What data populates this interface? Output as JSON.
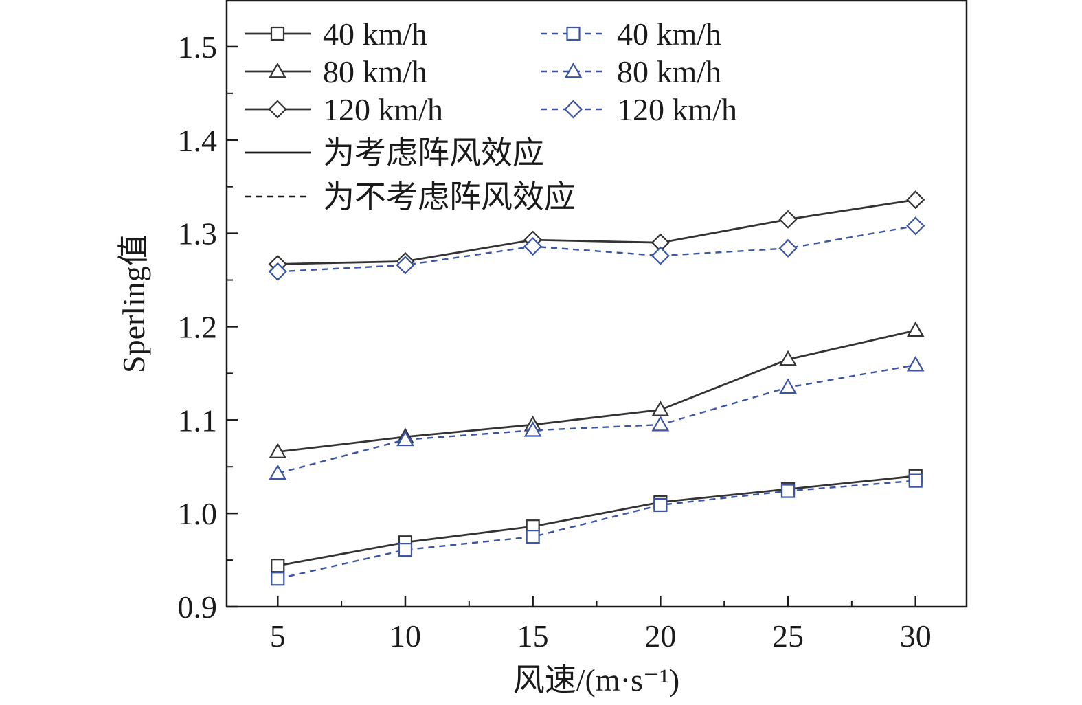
{
  "chart_data": {
    "type": "line",
    "xlabel": "风速/(m·s⁻¹)",
    "ylabel": "Sperling值",
    "x": [
      5,
      10,
      15,
      20,
      25,
      30
    ],
    "xlim": [
      3,
      32
    ],
    "ylim": [
      0.9,
      1.55
    ],
    "x_ticks": [
      "5",
      "10",
      "15",
      "20",
      "25",
      "30"
    ],
    "y_ticks": [
      "0.9",
      "1.0",
      "1.1",
      "1.2",
      "1.3",
      "1.4",
      "1.5"
    ],
    "grid": false,
    "legend_position": "top-left",
    "series": [
      {
        "name": "40 km/h",
        "group": "gust",
        "line": "solid",
        "marker": "square",
        "color": "#333333",
        "values": [
          0.944,
          0.969,
          0.986,
          1.012,
          1.026,
          1.04
        ]
      },
      {
        "name": "80 km/h",
        "group": "gust",
        "line": "solid",
        "marker": "triangle",
        "color": "#333333",
        "values": [
          1.066,
          1.082,
          1.095,
          1.111,
          1.165,
          1.196
        ]
      },
      {
        "name": "120 km/h",
        "group": "gust",
        "line": "solid",
        "marker": "diamond",
        "color": "#333333",
        "values": [
          1.267,
          1.27,
          1.293,
          1.29,
          1.315,
          1.336
        ]
      },
      {
        "name": "40 km/h",
        "group": "no-gust",
        "line": "dashed",
        "marker": "square",
        "color": "#3a55a4",
        "values": [
          0.93,
          0.961,
          0.975,
          1.009,
          1.024,
          1.035
        ]
      },
      {
        "name": "80 km/h",
        "group": "no-gust",
        "line": "dashed",
        "marker": "triangle",
        "color": "#3a55a4",
        "values": [
          1.043,
          1.079,
          1.089,
          1.095,
          1.135,
          1.159
        ]
      },
      {
        "name": "120 km/h",
        "group": "no-gust",
        "line": "dashed",
        "marker": "diamond",
        "color": "#3a55a4",
        "values": [
          1.259,
          1.266,
          1.286,
          1.276,
          1.284,
          1.308
        ]
      }
    ],
    "legend_notes": [
      {
        "text": "为考虑阵风效应",
        "line": "solid"
      },
      {
        "text": "为不考虑阵风效应",
        "line": "dashed"
      }
    ]
  }
}
